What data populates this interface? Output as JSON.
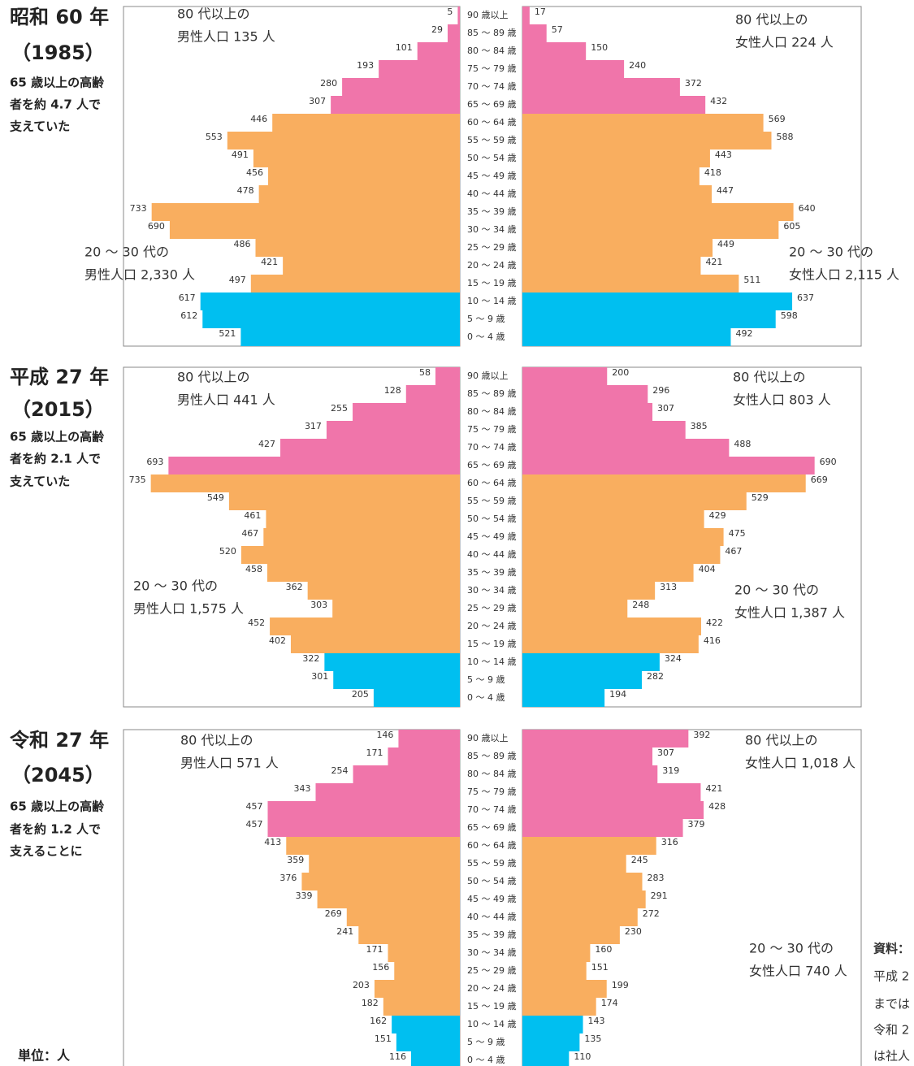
{
  "chart_data": [
    {
      "type": "pyramid",
      "title": "昭和 60 年",
      "subtitle": "（1985）",
      "note_lines": [
        "65 歳以上の高齢",
        "者を約 4.7 人で",
        "支えていた"
      ],
      "categories": [
        "90 歳以上",
        "85 ～ 89 歳",
        "80 ～ 84 歳",
        "75 ～ 79 歳",
        "70 ～ 74 歳",
        "65 ～ 69 歳",
        "60 ～ 64 歳",
        "55 ～ 59 歳",
        "50 ～ 54 歳",
        "45 ～ 49 歳",
        "40 ～ 44 歳",
        "35 ～ 39 歳",
        "30 ～ 34 歳",
        "25 ～ 29 歳",
        "20 ～ 24 歳",
        "15 ～ 19 歳",
        "10 ～ 14 歳",
        "5 ～ 9 歳",
        "0 ～ 4 歳"
      ],
      "colors": [
        "#f075aa",
        "#f075aa",
        "#f075aa",
        "#f075aa",
        "#f075aa",
        "#f075aa",
        "#f9ae5f",
        "#f9ae5f",
        "#f9ae5f",
        "#f9ae5f",
        "#f9ae5f",
        "#f9ae5f",
        "#f9ae5f",
        "#f9ae5f",
        "#f9ae5f",
        "#f9ae5f",
        "#00bff0",
        "#00bff0",
        "#00bff0"
      ],
      "xlim": [
        0,
        800
      ],
      "series": [
        {
          "values": [
            5,
            29,
            101,
            193,
            280,
            307,
            446,
            553,
            491,
            456,
            478,
            733,
            690,
            486,
            421,
            497,
            617,
            612,
            521
          ]
        },
        {
          "values": [
            17,
            57,
            150,
            240,
            372,
            432,
            569,
            588,
            443,
            418,
            447,
            640,
            605,
            449,
            421,
            511,
            637,
            598,
            492
          ]
        }
      ],
      "annotations": [
        {
          "lines": [
            "80 代以上の",
            "男性人口 135 人"
          ]
        },
        {
          "lines": [
            "20 ～ 30 代の",
            "男性人口 2,330 人"
          ]
        },
        {
          "lines": [
            "80 代以上の",
            "女性人口 224 人"
          ]
        },
        {
          "lines": [
            "20 ～ 30 代の",
            "女性人口 2,115 人"
          ]
        }
      ]
    },
    {
      "type": "pyramid",
      "title": "平成 27 年",
      "subtitle": "（2015）",
      "note_lines": [
        "65 歳以上の高齢",
        "者を約 2.1 人で",
        "支えていた"
      ],
      "categories": [
        "90 歳以上",
        "85 ～ 89 歳",
        "80 ～ 84 歳",
        "75 ～ 79 歳",
        "70 ～ 74 歳",
        "65 ～ 69 歳",
        "60 ～ 64 歳",
        "55 ～ 59 歳",
        "50 ～ 54 歳",
        "45 ～ 49 歳",
        "40 ～ 44 歳",
        "35 ～ 39 歳",
        "30 ～ 34 歳",
        "25 ～ 29 歳",
        "20 ～ 24 歳",
        "15 ～ 19 歳",
        "10 ～ 14 歳",
        "5 ～ 9 歳",
        "0 ～ 4 歳"
      ],
      "colors": [
        "#f075aa",
        "#f075aa",
        "#f075aa",
        "#f075aa",
        "#f075aa",
        "#f075aa",
        "#f9ae5f",
        "#f9ae5f",
        "#f9ae5f",
        "#f9ae5f",
        "#f9ae5f",
        "#f9ae5f",
        "#f9ae5f",
        "#f9ae5f",
        "#f9ae5f",
        "#f9ae5f",
        "#00bff0",
        "#00bff0",
        "#00bff0"
      ],
      "xlim": [
        0,
        800
      ],
      "series": [
        {
          "values": [
            58,
            128,
            255,
            317,
            427,
            693,
            735,
            549,
            461,
            467,
            520,
            458,
            362,
            303,
            452,
            402,
            322,
            301,
            205
          ]
        },
        {
          "values": [
            200,
            296,
            307,
            385,
            488,
            690,
            669,
            529,
            429,
            475,
            467,
            404,
            313,
            248,
            422,
            416,
            324,
            282,
            194
          ]
        }
      ],
      "annotations": [
        {
          "lines": [
            "80 代以上の",
            "男性人口 441 人"
          ]
        },
        {
          "lines": [
            "20 ～ 30 代の",
            "男性人口 1,575 人"
          ]
        },
        {
          "lines": [
            "80 代以上の",
            "女性人口 803 人"
          ]
        },
        {
          "lines": [
            "20 ～ 30 代の",
            "女性人口 1,387 人"
          ]
        }
      ]
    },
    {
      "type": "pyramid",
      "title": "令和 27 年",
      "subtitle": "（2045）",
      "note_lines": [
        "65 歳以上の高齢",
        "者を約 1.2 人で",
        "支えることに"
      ],
      "categories": [
        "90 歳以上",
        "85 ～ 89 歳",
        "80 ～ 84 歳",
        "75 ～ 79 歳",
        "70 ～ 74 歳",
        "65 ～ 69 歳",
        "60 ～ 64 歳",
        "55 ～ 59 歳",
        "50 ～ 54 歳",
        "45 ～ 49 歳",
        "40 ～ 44 歳",
        "35 ～ 39 歳",
        "30 ～ 34 歳",
        "25 ～ 29 歳",
        "20 ～ 24 歳",
        "15 ～ 19 歳",
        "10 ～ 14 歳",
        "5 ～ 9 歳",
        "0 ～ 4 歳"
      ],
      "colors": [
        "#f075aa",
        "#f075aa",
        "#f075aa",
        "#f075aa",
        "#f075aa",
        "#f075aa",
        "#f9ae5f",
        "#f9ae5f",
        "#f9ae5f",
        "#f9ae5f",
        "#f9ae5f",
        "#f9ae5f",
        "#f9ae5f",
        "#f9ae5f",
        "#f9ae5f",
        "#f9ae5f",
        "#00bff0",
        "#00bff0",
        "#00bff0"
      ],
      "xlim": [
        0,
        800
      ],
      "series": [
        {
          "values": [
            146,
            171,
            254,
            343,
            457,
            457,
            413,
            359,
            376,
            339,
            269,
            241,
            171,
            156,
            203,
            182,
            162,
            151,
            116
          ]
        },
        {
          "values": [
            392,
            307,
            319,
            421,
            428,
            379,
            316,
            245,
            283,
            291,
            272,
            230,
            160,
            151,
            199,
            174,
            143,
            135,
            110
          ]
        }
      ],
      "annotations": [
        {
          "lines": [
            "80 代以上の",
            "男性人口 571 人"
          ]
        },
        {
          "lines": [
            "80 代以上の",
            "女性人口 1,018 人"
          ]
        },
        {
          "lines": [
            "20 ～ 30 代の",
            "女性人口 740 人"
          ]
        }
      ]
    }
  ],
  "unit_label": "単位：人",
  "source_lines": [
    "資料：",
    "平成 2",
    "までは",
    "令和 2",
    "は社人"
  ]
}
